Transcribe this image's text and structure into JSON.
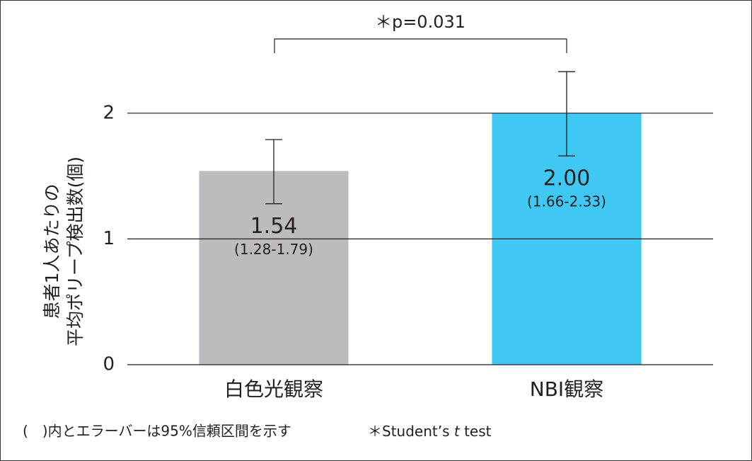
{
  "chart_data": {
    "type": "bar",
    "ylabel": [
      "患者1人あたりの",
      "平均ポリープ検出数(個)"
    ],
    "categories": [
      "白色光観察",
      "NBI観察"
    ],
    "values": [
      1.54,
      2.0
    ],
    "value_labels": [
      "1.54",
      "2.00"
    ],
    "ci_low": [
      1.28,
      1.66
    ],
    "ci_high": [
      1.79,
      2.33
    ],
    "ci_labels": [
      "(1.28-1.79)",
      "(1.66-2.33)"
    ],
    "colors": [
      "#bcbcbe",
      "#40c8f4"
    ],
    "ylim": [
      0,
      2.5
    ],
    "yticks": [
      0,
      1,
      2
    ],
    "grid": true,
    "annotation": "＊p=0.031",
    "footnote": "(　)内とエラーバーは95%信頼区間を示す",
    "test_note": [
      "＊Student’s ",
      "t",
      " test"
    ]
  }
}
